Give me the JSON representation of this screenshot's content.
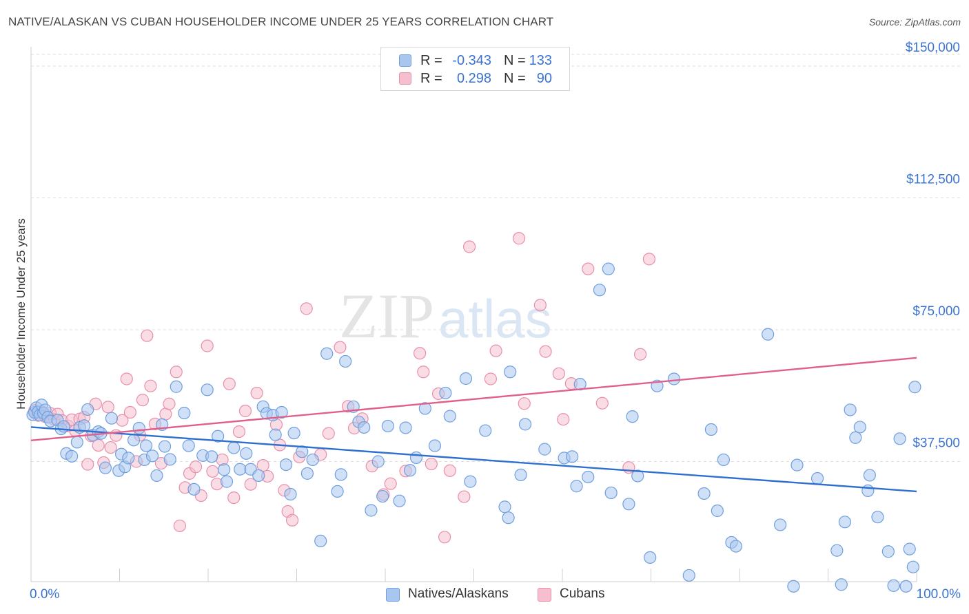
{
  "header": {
    "title": "NATIVE/ALASKAN VS CUBAN HOUSEHOLDER INCOME UNDER 25 YEARS CORRELATION CHART",
    "source": "Source: ZipAtlas.com"
  },
  "watermark": {
    "part1": "ZIP",
    "part2": "atlas"
  },
  "legend_top": {
    "rows": [
      {
        "r_label": "R =",
        "r_value": "-0.343",
        "n_label": "N =",
        "n_value": "133"
      },
      {
        "r_label": "R =",
        "r_value": "0.298",
        "n_label": "N =",
        "n_value": "90"
      }
    ]
  },
  "legend_bottom": {
    "items": [
      {
        "label": "Natives/Alaskans"
      },
      {
        "label": "Cubans"
      }
    ]
  },
  "colors": {
    "blue_fill": "#a9c6ef",
    "blue_stroke": "#6f9fde",
    "blue_line": "#2f6fd0",
    "pink_fill": "#f6bfd0",
    "pink_stroke": "#e88fab",
    "pink_line": "#e0608c",
    "tick_text": "#3b73d1",
    "grid": "#dddddd"
  },
  "chart_data": {
    "type": "scatter",
    "title": "NATIVE/ALASKAN VS CUBAN HOUSEHOLDER INCOME UNDER 25 YEARS CORRELATION CHART",
    "xlabel": "",
    "ylabel": "Householder Income Under 25 years",
    "xlim": [
      0,
      100
    ],
    "ylim": [
      0,
      150000
    ],
    "x_tick_labels": [
      "0.0%",
      "100.0%"
    ],
    "y_ticks": [
      37500,
      75000,
      112500,
      150000
    ],
    "y_tick_labels": [
      "$37,500",
      "$75,000",
      "$112,500",
      "$150,000"
    ],
    "grid": true,
    "legend_position": "top-center",
    "series": [
      {
        "name": "Natives/Alaskans",
        "r": -0.343,
        "n": 133,
        "trend": {
          "x": [
            0,
            100
          ],
          "y": [
            47300,
            29000
          ]
        },
        "points": [
          [
            0.2,
            50800
          ],
          [
            0.4,
            51500
          ],
          [
            0.6,
            52800
          ],
          [
            0.8,
            51600
          ],
          [
            1.0,
            50700
          ],
          [
            1.2,
            53600
          ],
          [
            1.4,
            51300
          ],
          [
            1.6,
            52200
          ],
          [
            1.9,
            50100
          ],
          [
            2.2,
            49000
          ],
          [
            3.0,
            49300
          ],
          [
            3.4,
            46800
          ],
          [
            3.7,
            47500
          ],
          [
            4.0,
            39800
          ],
          [
            4.6,
            39000
          ],
          [
            5.2,
            43000
          ],
          [
            5.5,
            47200
          ],
          [
            6.0,
            47700
          ],
          [
            6.4,
            52300
          ],
          [
            7.0,
            45000
          ],
          [
            7.6,
            46000
          ],
          [
            7.9,
            45500
          ],
          [
            8.4,
            35700
          ],
          [
            9.1,
            49800
          ],
          [
            9.9,
            34900
          ],
          [
            10.2,
            39600
          ],
          [
            10.6,
            36000
          ],
          [
            11.0,
            38500
          ],
          [
            11.6,
            43600
          ],
          [
            12.2,
            47000
          ],
          [
            12.8,
            38000
          ],
          [
            13.0,
            42000
          ],
          [
            13.7,
            39100
          ],
          [
            14.2,
            33500
          ],
          [
            14.8,
            48000
          ],
          [
            15.1,
            41800
          ],
          [
            15.7,
            38100
          ],
          [
            16.4,
            58800
          ],
          [
            17.3,
            51300
          ],
          [
            17.8,
            42000
          ],
          [
            18.4,
            29600
          ],
          [
            19.4,
            39200
          ],
          [
            19.9,
            57900
          ],
          [
            20.4,
            38900
          ],
          [
            21.1,
            44700
          ],
          [
            21.8,
            35200
          ],
          [
            22.1,
            31800
          ],
          [
            22.9,
            41400
          ],
          [
            23.6,
            35300
          ],
          [
            24.3,
            39800
          ],
          [
            24.8,
            35300
          ],
          [
            25.7,
            33500
          ],
          [
            26.2,
            53100
          ],
          [
            26.6,
            51200
          ],
          [
            27.3,
            50700
          ],
          [
            27.6,
            45100
          ],
          [
            28.3,
            51500
          ],
          [
            28.8,
            36600
          ],
          [
            29.3,
            28200
          ],
          [
            29.7,
            45600
          ],
          [
            30.6,
            40300
          ],
          [
            31.2,
            34100
          ],
          [
            31.8,
            38000
          ],
          [
            32.7,
            14900
          ],
          [
            33.4,
            68200
          ],
          [
            34.6,
            29000
          ],
          [
            35.0,
            33800
          ],
          [
            35.5,
            66000
          ],
          [
            36.4,
            53100
          ],
          [
            37.0,
            48800
          ],
          [
            37.6,
            47200
          ],
          [
            38.4,
            23600
          ],
          [
            39.2,
            37500
          ],
          [
            39.7,
            27600
          ],
          [
            40.3,
            47600
          ],
          [
            41.6,
            26300
          ],
          [
            42.3,
            47100
          ],
          [
            42.8,
            35000
          ],
          [
            43.5,
            38600
          ],
          [
            44.5,
            52600
          ],
          [
            45.6,
            42000
          ],
          [
            46.8,
            57000
          ],
          [
            47.3,
            50400
          ],
          [
            49.6,
            31800
          ],
          [
            49.1,
            61100
          ],
          [
            51.3,
            46300
          ],
          [
            53.5,
            24600
          ],
          [
            53.9,
            21500
          ],
          [
            54.1,
            63000
          ],
          [
            55.3,
            33700
          ],
          [
            55.8,
            48100
          ],
          [
            58.0,
            41000
          ],
          [
            60.2,
            38500
          ],
          [
            61.1,
            38900
          ],
          [
            61.6,
            30500
          ],
          [
            62.0,
            59500
          ],
          [
            62.9,
            33100
          ],
          [
            64.2,
            86300
          ],
          [
            65.2,
            92300
          ],
          [
            65.5,
            28600
          ],
          [
            67.5,
            25400
          ],
          [
            67.9,
            50300
          ],
          [
            68.5,
            33400
          ],
          [
            69.9,
            10200
          ],
          [
            70.7,
            59000
          ],
          [
            72.6,
            61000
          ],
          [
            74.3,
            5100
          ],
          [
            76.0,
            28400
          ],
          [
            76.8,
            46600
          ],
          [
            77.5,
            23500
          ],
          [
            78.2,
            38000
          ],
          [
            79.1,
            14500
          ],
          [
            79.6,
            13400
          ],
          [
            83.2,
            73700
          ],
          [
            84.6,
            19500
          ],
          [
            86.1,
            2000
          ],
          [
            86.5,
            36500
          ],
          [
            88.8,
            32700
          ],
          [
            91.0,
            12200
          ],
          [
            91.5,
            2500
          ],
          [
            91.9,
            20300
          ],
          [
            92.5,
            52200
          ],
          [
            93.1,
            44300
          ],
          [
            93.6,
            47300
          ],
          [
            94.7,
            33600
          ],
          [
            94.5,
            29200
          ],
          [
            95.6,
            21700
          ],
          [
            96.8,
            11900
          ],
          [
            97.4,
            2200
          ],
          [
            98.1,
            44000
          ],
          [
            98.8,
            2000
          ],
          [
            99.2,
            12600
          ],
          [
            99.8,
            58700
          ],
          [
            99.6,
            7500
          ]
        ]
      },
      {
        "name": "Cubans",
        "r": 0.298,
        "n": 90,
        "trend": {
          "x": [
            0,
            100
          ],
          "y": [
            43500,
            67000
          ]
        },
        "points": [
          [
            0.4,
            52000
          ],
          [
            0.8,
            50600
          ],
          [
            1.2,
            51700
          ],
          [
            1.6,
            50300
          ],
          [
            2.2,
            51200
          ],
          [
            2.6,
            49500
          ],
          [
            3.0,
            51000
          ],
          [
            3.5,
            49200
          ],
          [
            4.2,
            47600
          ],
          [
            4.6,
            49400
          ],
          [
            5.0,
            46300
          ],
          [
            5.5,
            49600
          ],
          [
            6.0,
            50100
          ],
          [
            6.4,
            36700
          ],
          [
            6.8,
            44800
          ],
          [
            7.3,
            53900
          ],
          [
            7.6,
            42100
          ],
          [
            8.2,
            37200
          ],
          [
            8.7,
            53000
          ],
          [
            9.0,
            41500
          ],
          [
            9.6,
            44900
          ],
          [
            10.3,
            49200
          ],
          [
            10.8,
            61000
          ],
          [
            11.2,
            51500
          ],
          [
            11.9,
            37500
          ],
          [
            12.3,
            45000
          ],
          [
            12.6,
            55000
          ],
          [
            13.1,
            73300
          ],
          [
            13.5,
            59000
          ],
          [
            14.0,
            48200
          ],
          [
            14.7,
            37000
          ],
          [
            15.2,
            51000
          ],
          [
            15.6,
            53900
          ],
          [
            16.4,
            63000
          ],
          [
            16.8,
            19200
          ],
          [
            17.4,
            30100
          ],
          [
            17.9,
            34100
          ],
          [
            18.6,
            36000
          ],
          [
            19.2,
            27800
          ],
          [
            19.9,
            70400
          ],
          [
            20.5,
            34700
          ],
          [
            21.0,
            31100
          ],
          [
            21.6,
            38000
          ],
          [
            22.4,
            59600
          ],
          [
            22.9,
            27200
          ],
          [
            23.5,
            46000
          ],
          [
            24.2,
            51900
          ],
          [
            24.8,
            31000
          ],
          [
            25.5,
            57000
          ],
          [
            26.2,
            36400
          ],
          [
            26.7,
            33300
          ],
          [
            27.7,
            48000
          ],
          [
            28.1,
            42200
          ],
          [
            28.6,
            29300
          ],
          [
            29.0,
            23300
          ],
          [
            29.5,
            20800
          ],
          [
            30.3,
            38800
          ],
          [
            31.1,
            81000
          ],
          [
            32.7,
            39500
          ],
          [
            33.6,
            45500
          ],
          [
            34.9,
            70000
          ],
          [
            35.8,
            53200
          ],
          [
            36.5,
            47000
          ],
          [
            37.4,
            49700
          ],
          [
            38.5,
            36200
          ],
          [
            39.8,
            28100
          ],
          [
            40.6,
            31200
          ],
          [
            42.3,
            34800
          ],
          [
            43.9,
            68300
          ],
          [
            44.3,
            63000
          ],
          [
            45.2,
            36800
          ],
          [
            46.0,
            56800
          ],
          [
            46.7,
            16000
          ],
          [
            47.3,
            34900
          ],
          [
            48.9,
            27500
          ],
          [
            49.5,
            98600
          ],
          [
            51.9,
            61000
          ],
          [
            52.5,
            69000
          ],
          [
            55.1,
            101000
          ],
          [
            55.7,
            54000
          ],
          [
            57.5,
            82000
          ],
          [
            58.1,
            68800
          ],
          [
            59.6,
            62500
          ],
          [
            60.1,
            49500
          ],
          [
            61.0,
            59700
          ],
          [
            62.9,
            92300
          ],
          [
            64.5,
            54100
          ],
          [
            67.5,
            35800
          ],
          [
            68.8,
            68000
          ],
          [
            69.8,
            95100
          ]
        ]
      }
    ]
  }
}
